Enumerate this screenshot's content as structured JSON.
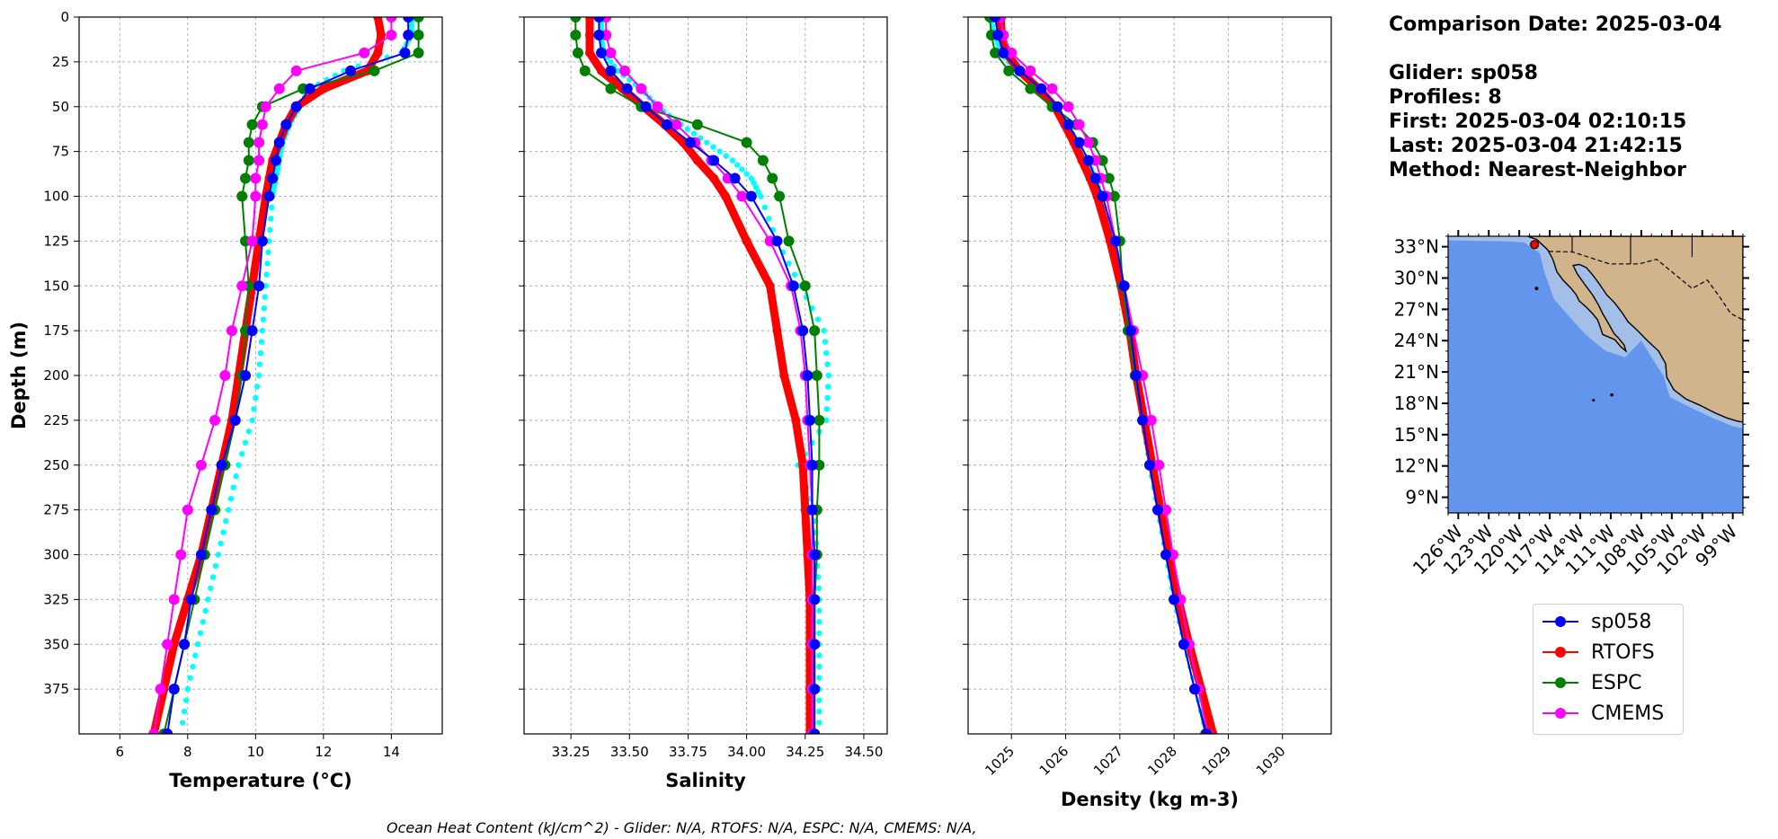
{
  "info": {
    "comparison": "Comparison Date: 2025-03-04",
    "glider": "Glider: sp058",
    "profiles": "Profiles: 8",
    "first": "First: 2025-03-04 02:10:15",
    "last": "Last: 2025-03-04 21:42:15",
    "method": "Method: Nearest-Neighbor"
  },
  "footer": "Ocean Heat Content (kJ/cm^2) - Glider: N/A,  RTOFS: N/A,  ESPC: N/A,  CMEMS: N/A,",
  "legend": [
    {
      "label": "sp058",
      "color": "#0000ff"
    },
    {
      "label": "RTOFS",
      "color": "#ff0000"
    },
    {
      "label": "ESPC",
      "color": "#008000"
    },
    {
      "label": "CMEMS",
      "color": "#ff00ff"
    }
  ],
  "colors": {
    "glider_points": "#00ffff",
    "sp058": "#0000ff",
    "rtofs": "#ff0000",
    "espc": "#008000",
    "cmems": "#ff00ff",
    "ocean": "#6495ed",
    "shelf": "#a3bfe8",
    "land": "#d2b48c"
  },
  "chart_data": [
    {
      "type": "line",
      "xlabel": "Temperature (°C)",
      "ylabel": "Depth (m)",
      "xlim": [
        4.8,
        15.5
      ],
      "ylim": [
        400,
        0
      ],
      "xticks": [
        6,
        8,
        10,
        12,
        14
      ],
      "yticks": [
        0,
        25,
        50,
        75,
        100,
        125,
        150,
        175,
        200,
        225,
        250,
        275,
        300,
        325,
        350,
        375
      ],
      "grid": true,
      "depth": [
        0,
        10,
        20,
        30,
        40,
        50,
        60,
        70,
        80,
        90,
        100,
        125,
        150,
        175,
        200,
        225,
        250,
        275,
        300,
        325,
        350,
        375,
        400
      ],
      "glider_scatter": [
        14.6,
        14.6,
        14.3,
        12.6,
        11.6,
        11.3,
        11.0,
        10.8,
        10.7,
        10.6,
        10.5,
        10.4,
        10.3,
        10.2,
        10.1,
        9.9,
        9.5,
        9.2,
        8.9,
        8.6,
        8.3,
        8.0,
        7.8
      ],
      "series": [
        {
          "name": "sp058",
          "values": [
            14.5,
            14.5,
            14.4,
            12.8,
            11.6,
            11.2,
            10.9,
            10.7,
            10.6,
            10.5,
            10.4,
            10.2,
            10.1,
            9.9,
            9.7,
            9.4,
            9.0,
            8.7,
            8.4,
            8.1,
            7.9,
            7.6,
            7.4
          ]
        },
        {
          "name": "RTOFS",
          "values": [
            13.6,
            13.7,
            13.6,
            13.3,
            12.0,
            11.2,
            10.9,
            10.7,
            10.5,
            10.4,
            10.3,
            10.1,
            9.9,
            9.7,
            9.5,
            9.3,
            9.0,
            8.7,
            8.4,
            8.0,
            7.6,
            7.3,
            7.0
          ]
        },
        {
          "name": "ESPC",
          "values": [
            14.8,
            14.8,
            14.8,
            13.5,
            11.4,
            10.2,
            9.9,
            9.8,
            9.8,
            9.7,
            9.6,
            9.7,
            9.8,
            9.7,
            9.6,
            9.4,
            9.1,
            8.8,
            8.5,
            8.2,
            7.9,
            7.6,
            7.3
          ]
        },
        {
          "name": "CMEMS",
          "values": [
            14.0,
            14.0,
            13.2,
            11.2,
            10.7,
            10.3,
            10.2,
            10.1,
            10.1,
            10.0,
            10.0,
            9.9,
            9.6,
            9.3,
            9.1,
            8.8,
            8.4,
            8.0,
            7.8,
            7.6,
            7.4,
            7.2,
            7.0
          ]
        }
      ]
    },
    {
      "type": "line",
      "xlabel": "Salinity",
      "ylabel": "",
      "xlim": [
        33.05,
        34.6
      ],
      "ylim": [
        400,
        0
      ],
      "xticks": [
        33.25,
        33.5,
        33.75,
        34.0,
        34.25,
        34.5
      ],
      "grid": true,
      "depth": [
        0,
        10,
        20,
        30,
        40,
        50,
        60,
        70,
        80,
        90,
        100,
        125,
        150,
        175,
        200,
        225,
        250,
        275,
        300,
        325,
        350,
        375,
        400
      ],
      "glider_scatter": [
        33.38,
        33.38,
        33.39,
        33.45,
        33.55,
        33.62,
        33.72,
        33.83,
        33.94,
        34.02,
        34.06,
        34.13,
        34.23,
        34.33,
        34.35,
        34.34,
        34.22,
        34.29,
        34.3,
        34.31,
        34.31,
        34.31,
        34.31
      ],
      "series": [
        {
          "name": "sp058",
          "values": [
            33.37,
            33.37,
            33.38,
            33.42,
            33.49,
            33.57,
            33.66,
            33.76,
            33.86,
            33.95,
            34.02,
            34.13,
            34.2,
            34.24,
            34.26,
            34.27,
            34.28,
            34.28,
            34.29,
            34.29,
            34.29,
            34.29,
            34.29
          ]
        },
        {
          "name": "RTOFS",
          "values": [
            33.33,
            33.33,
            33.33,
            33.38,
            33.47,
            33.56,
            33.65,
            33.73,
            33.79,
            33.86,
            33.91,
            34.0,
            34.1,
            34.13,
            34.16,
            34.21,
            34.24,
            34.25,
            34.26,
            34.27,
            34.27,
            34.27,
            34.27
          ]
        },
        {
          "name": "ESPC",
          "values": [
            33.27,
            33.27,
            33.28,
            33.31,
            33.42,
            33.55,
            33.79,
            34.0,
            34.07,
            34.11,
            34.14,
            34.18,
            34.25,
            34.29,
            34.3,
            34.31,
            34.31,
            34.3,
            34.3,
            34.29,
            34.29,
            34.28,
            34.28
          ]
        },
        {
          "name": "CMEMS",
          "values": [
            33.4,
            33.4,
            33.42,
            33.48,
            33.55,
            33.62,
            33.7,
            33.78,
            33.85,
            33.92,
            33.98,
            34.1,
            34.19,
            34.23,
            34.25,
            34.26,
            34.27,
            34.28,
            34.28,
            34.28,
            34.28,
            34.28,
            34.28
          ]
        }
      ]
    },
    {
      "type": "line",
      "xlabel": "Density (kg m-3)",
      "ylabel": "",
      "xlim": [
        1024.2,
        1030.9
      ],
      "ylim": [
        400,
        0
      ],
      "xticks": [
        1025,
        1026,
        1027,
        1028,
        1029,
        1030
      ],
      "grid": true,
      "depth": [
        0,
        10,
        20,
        30,
        40,
        50,
        60,
        70,
        80,
        90,
        100,
        125,
        150,
        175,
        200,
        225,
        250,
        275,
        300,
        325,
        350,
        375,
        400
      ],
      "glider_scatter": [
        1024.6,
        1024.7,
        1024.8,
        1025.1,
        1025.5,
        1025.8,
        1026.05,
        1026.2,
        1026.4,
        1026.55,
        1026.65,
        1026.9,
        1027.05,
        1027.2,
        1027.3,
        1027.42,
        1027.55,
        1027.7,
        1027.85,
        1028.0,
        1028.2,
        1028.4,
        1028.6
      ],
      "series": [
        {
          "name": "sp058",
          "values": [
            1024.7,
            1024.75,
            1024.85,
            1025.15,
            1025.55,
            1025.85,
            1026.05,
            1026.25,
            1026.42,
            1026.55,
            1026.68,
            1026.92,
            1027.08,
            1027.2,
            1027.3,
            1027.42,
            1027.55,
            1027.7,
            1027.85,
            1028.0,
            1028.18,
            1028.38,
            1028.6
          ]
        },
        {
          "name": "RTOFS",
          "values": [
            1024.8,
            1024.82,
            1024.9,
            1025.15,
            1025.5,
            1025.8,
            1025.98,
            1026.15,
            1026.3,
            1026.45,
            1026.58,
            1026.82,
            1027.02,
            1027.18,
            1027.3,
            1027.45,
            1027.6,
            1027.75,
            1027.9,
            1028.08,
            1028.28,
            1028.5,
            1028.72
          ]
        },
        {
          "name": "ESPC",
          "values": [
            1024.6,
            1024.63,
            1024.7,
            1024.95,
            1025.35,
            1025.75,
            1026.2,
            1026.5,
            1026.68,
            1026.8,
            1026.9,
            1027.0,
            1027.05,
            1027.15,
            1027.28,
            1027.42,
            1027.55,
            1027.7,
            1027.85,
            1028.0,
            1028.18,
            1028.38,
            1028.58
          ]
        },
        {
          "name": "CMEMS",
          "values": [
            1024.8,
            1024.85,
            1025.0,
            1025.35,
            1025.75,
            1026.05,
            1026.25,
            1026.42,
            1026.55,
            1026.65,
            1026.75,
            1026.92,
            1027.08,
            1027.25,
            1027.42,
            1027.58,
            1027.72,
            1027.85,
            1027.98,
            1028.12,
            1028.28,
            1028.45,
            1028.62
          ]
        }
      ]
    }
  ],
  "map": {
    "lat_ticks": [
      "33°N",
      "30°N",
      "27°N",
      "24°N",
      "21°N",
      "18°N",
      "15°N",
      "12°N",
      "9°N"
    ],
    "lon_ticks": [
      "126°W",
      "123°W",
      "120°W",
      "117°W",
      "114°W",
      "111°W",
      "108°W",
      "105°W",
      "102°W",
      "99°W"
    ],
    "lat_range": [
      7.5,
      34
    ],
    "lon_range": [
      -127,
      -98
    ],
    "glider_location": [
      -118.5,
      33.2
    ]
  }
}
